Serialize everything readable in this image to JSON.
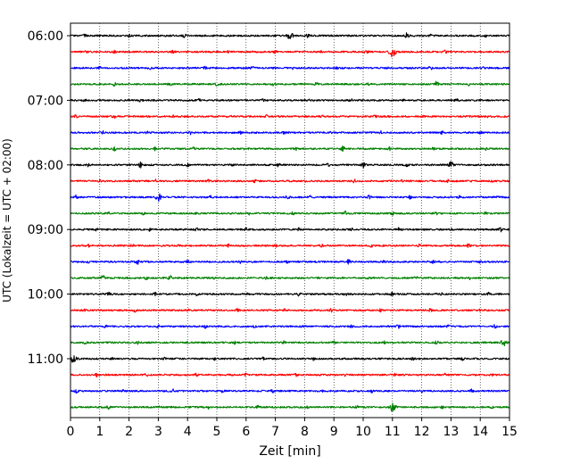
{
  "chart_data": {
    "type": "line",
    "title": "",
    "xlabel": "Zeit  [min]",
    "ylabel": "UTC (Lokalzeit = UTC + 02:00)",
    "xlim": [
      0,
      15
    ],
    "x_ticks": [
      "0",
      "1",
      "2",
      "3",
      "4",
      "5",
      "6",
      "7",
      "8",
      "9",
      "10",
      "11",
      "12",
      "13",
      "14",
      "15"
    ],
    "y_tick_labels": [
      "06:00",
      "07:00",
      "08:00",
      "09:00",
      "10:00",
      "11:00"
    ],
    "row_interval_minutes": 15,
    "row_start": "06:00",
    "row_end": "11:45",
    "grid": "vertical dotted at each minute",
    "colors": [
      "#000000",
      "#ff0000",
      "#0000ff",
      "#008000"
    ],
    "series": [
      {
        "start": "06:00",
        "color": "#000000",
        "events": [
          [
            7.5,
            1.0
          ],
          [
            11.5,
            0.7
          ],
          [
            0.5,
            0.35
          ],
          [
            2.0,
            0.3
          ],
          [
            3.9,
            0.35
          ],
          [
            5.5,
            0.3
          ],
          [
            8.1,
            0.45
          ],
          [
            12.3,
            0.3
          ],
          [
            14.2,
            0.25
          ]
        ]
      },
      {
        "start": "06:15",
        "color": "#ff0000",
        "events": [
          [
            11.0,
            1.2
          ],
          [
            0.5,
            0.35
          ],
          [
            1.5,
            0.3
          ],
          [
            3.5,
            0.35
          ],
          [
            5.4,
            0.3
          ],
          [
            7.0,
            0.35
          ],
          [
            8.6,
            0.3
          ],
          [
            10.1,
            0.45
          ],
          [
            12.8,
            0.35
          ]
        ]
      },
      {
        "start": "06:30",
        "color": "#0000ff",
        "events": [
          [
            1.0,
            0.3
          ],
          [
            2.7,
            0.35
          ],
          [
            4.6,
            0.3
          ],
          [
            6.2,
            0.35
          ],
          [
            7.6,
            0.3
          ],
          [
            9.1,
            0.35
          ],
          [
            10.8,
            0.3
          ],
          [
            12.3,
            0.35
          ],
          [
            14.1,
            0.3
          ]
        ]
      },
      {
        "start": "06:45",
        "color": "#008000",
        "events": [
          [
            1.5,
            0.35
          ],
          [
            3.4,
            0.3
          ],
          [
            5.0,
            0.35
          ],
          [
            6.9,
            0.3
          ],
          [
            8.4,
            0.35
          ],
          [
            10.2,
            0.3
          ],
          [
            12.5,
            0.6
          ],
          [
            13.6,
            0.3
          ]
        ]
      },
      {
        "start": "07:00",
        "color": "#000000",
        "events": [
          [
            0.5,
            0.3
          ],
          [
            2.4,
            0.35
          ],
          [
            4.4,
            0.3
          ],
          [
            6.6,
            0.35
          ],
          [
            8.2,
            0.3
          ],
          [
            9.6,
            0.35
          ],
          [
            11.4,
            0.3
          ],
          [
            13.2,
            0.35
          ]
        ]
      },
      {
        "start": "07:15",
        "color": "#ff0000",
        "events": [
          [
            0.2,
            0.5
          ],
          [
            1.5,
            0.4
          ],
          [
            3.5,
            0.35
          ],
          [
            5.5,
            0.3
          ],
          [
            6.7,
            0.35
          ],
          [
            8.6,
            0.3
          ],
          [
            10.4,
            0.35
          ],
          [
            12.1,
            0.3
          ],
          [
            14.3,
            0.35
          ]
        ]
      },
      {
        "start": "07:30",
        "color": "#0000ff",
        "events": [
          [
            1.1,
            0.35
          ],
          [
            2.6,
            0.3
          ],
          [
            4.1,
            0.35
          ],
          [
            5.8,
            0.3
          ],
          [
            7.3,
            0.35
          ],
          [
            8.9,
            0.3
          ],
          [
            10.6,
            0.35
          ],
          [
            12.7,
            0.4
          ],
          [
            14.0,
            0.3
          ]
        ]
      },
      {
        "start": "07:45",
        "color": "#008000",
        "events": [
          [
            1.5,
            0.45
          ],
          [
            2.9,
            0.4
          ],
          [
            4.2,
            0.35
          ],
          [
            6.0,
            0.35
          ],
          [
            7.7,
            0.3
          ],
          [
            9.3,
            0.6
          ],
          [
            10.9,
            0.35
          ],
          [
            12.4,
            0.3
          ],
          [
            14.2,
            0.35
          ]
        ]
      },
      {
        "start": "08:00",
        "color": "#000000",
        "events": [
          [
            2.4,
            0.7
          ],
          [
            0.6,
            0.35
          ],
          [
            4.0,
            0.35
          ],
          [
            5.5,
            0.3
          ],
          [
            7.1,
            0.35
          ],
          [
            8.8,
            0.3
          ],
          [
            10.0,
            0.7
          ],
          [
            11.5,
            0.35
          ],
          [
            13.0,
            0.7
          ]
        ]
      },
      {
        "start": "08:15",
        "color": "#ff0000",
        "events": [
          [
            1.0,
            0.3
          ],
          [
            2.9,
            0.35
          ],
          [
            4.7,
            0.3
          ],
          [
            6.3,
            0.35
          ],
          [
            8.0,
            0.3
          ],
          [
            9.7,
            0.35
          ],
          [
            11.3,
            0.3
          ],
          [
            12.9,
            0.35
          ],
          [
            14.4,
            0.3
          ]
        ]
      },
      {
        "start": "08:30",
        "color": "#0000ff",
        "events": [
          [
            0.2,
            0.45
          ],
          [
            3.0,
            1.0
          ],
          [
            4.8,
            0.35
          ],
          [
            7.4,
            0.65
          ],
          [
            8.2,
            0.35
          ],
          [
            10.2,
            0.4
          ],
          [
            11.6,
            0.35
          ],
          [
            13.3,
            0.35
          ],
          [
            14.6,
            0.3
          ]
        ]
      },
      {
        "start": "08:45",
        "color": "#008000",
        "events": [
          [
            1.3,
            0.35
          ],
          [
            2.5,
            0.3
          ],
          [
            4.3,
            0.35
          ],
          [
            6.1,
            0.3
          ],
          [
            7.6,
            0.35
          ],
          [
            9.4,
            0.45
          ],
          [
            11.0,
            0.35
          ],
          [
            12.5,
            0.3
          ],
          [
            14.2,
            0.35
          ]
        ]
      },
      {
        "start": "09:00",
        "color": "#000000",
        "events": [
          [
            0.9,
            0.35
          ],
          [
            2.7,
            0.3
          ],
          [
            4.3,
            0.35
          ],
          [
            6.0,
            0.3
          ],
          [
            7.8,
            0.35
          ],
          [
            9.6,
            0.3
          ],
          [
            11.2,
            0.35
          ],
          [
            13.0,
            0.3
          ],
          [
            14.7,
            0.5
          ]
        ]
      },
      {
        "start": "09:15",
        "color": "#ff0000",
        "events": [
          [
            0.6,
            0.35
          ],
          [
            2.1,
            0.3
          ],
          [
            3.7,
            0.35
          ],
          [
            5.4,
            0.3
          ],
          [
            7.0,
            0.35
          ],
          [
            8.6,
            0.3
          ],
          [
            10.3,
            0.35
          ],
          [
            11.9,
            0.3
          ],
          [
            13.6,
            0.35
          ]
        ]
      },
      {
        "start": "09:30",
        "color": "#0000ff",
        "events": [
          [
            0.6,
            0.3
          ],
          [
            2.3,
            0.55
          ],
          [
            4.0,
            0.35
          ],
          [
            5.8,
            0.3
          ],
          [
            7.4,
            0.35
          ],
          [
            9.5,
            0.55
          ],
          [
            10.7,
            0.35
          ],
          [
            12.4,
            0.3
          ],
          [
            14.0,
            0.35
          ]
        ]
      },
      {
        "start": "09:45",
        "color": "#008000",
        "events": [
          [
            1.1,
            0.6
          ],
          [
            2.6,
            0.4
          ],
          [
            3.4,
            0.55
          ],
          [
            4.9,
            0.35
          ],
          [
            6.7,
            0.35
          ],
          [
            8.5,
            0.3
          ],
          [
            10.2,
            0.35
          ],
          [
            11.8,
            0.3
          ],
          [
            13.6,
            0.4
          ]
        ]
      },
      {
        "start": "10:00",
        "color": "#000000",
        "events": [
          [
            1.3,
            0.4
          ],
          [
            2.9,
            0.35
          ],
          [
            4.3,
            0.35
          ],
          [
            6.0,
            0.3
          ],
          [
            7.8,
            0.35
          ],
          [
            9.4,
            0.3
          ],
          [
            11.0,
            0.35
          ],
          [
            12.7,
            0.3
          ],
          [
            14.3,
            0.35
          ]
        ]
      },
      {
        "start": "10:15",
        "color": "#ff0000",
        "events": [
          [
            0.5,
            0.3
          ],
          [
            2.2,
            0.35
          ],
          [
            4.0,
            0.3
          ],
          [
            5.7,
            0.35
          ],
          [
            7.3,
            0.3
          ],
          [
            8.9,
            0.35
          ],
          [
            10.6,
            0.3
          ],
          [
            12.3,
            0.35
          ],
          [
            14.0,
            0.3
          ]
        ]
      },
      {
        "start": "10:30",
        "color": "#0000ff",
        "events": [
          [
            1.2,
            0.35
          ],
          [
            3.0,
            0.3
          ],
          [
            4.6,
            0.35
          ],
          [
            6.3,
            0.3
          ],
          [
            7.9,
            0.35
          ],
          [
            9.6,
            0.3
          ],
          [
            11.2,
            0.45
          ],
          [
            12.9,
            0.3
          ],
          [
            14.5,
            0.35
          ]
        ]
      },
      {
        "start": "10:45",
        "color": "#008000",
        "events": [
          [
            0.5,
            0.35
          ],
          [
            2.3,
            0.3
          ],
          [
            4.0,
            0.35
          ],
          [
            5.6,
            0.3
          ],
          [
            7.3,
            0.35
          ],
          [
            9.0,
            0.3
          ],
          [
            10.7,
            0.35
          ],
          [
            12.5,
            0.4
          ],
          [
            14.8,
            0.9
          ]
        ]
      },
      {
        "start": "11:00",
        "color": "#000000",
        "events": [
          [
            0.1,
            1.0
          ],
          [
            1.4,
            0.35
          ],
          [
            3.2,
            0.3
          ],
          [
            4.9,
            0.35
          ],
          [
            6.6,
            0.3
          ],
          [
            8.3,
            0.35
          ],
          [
            10.0,
            0.3
          ],
          [
            11.7,
            0.35
          ],
          [
            13.4,
            0.3
          ]
        ]
      },
      {
        "start": "11:15",
        "color": "#ff0000",
        "events": [
          [
            0.9,
            0.35
          ],
          [
            2.6,
            0.3
          ],
          [
            4.3,
            0.35
          ],
          [
            6.0,
            0.3
          ],
          [
            7.7,
            0.35
          ],
          [
            9.4,
            0.3
          ],
          [
            11.1,
            0.35
          ],
          [
            12.8,
            0.3
          ],
          [
            14.4,
            0.35
          ]
        ]
      },
      {
        "start": "11:30",
        "color": "#0000ff",
        "events": [
          [
            0.2,
            0.4
          ],
          [
            1.8,
            0.35
          ],
          [
            3.5,
            0.35
          ],
          [
            5.2,
            0.3
          ],
          [
            6.9,
            0.35
          ],
          [
            8.6,
            0.3
          ],
          [
            10.3,
            0.35
          ],
          [
            12.0,
            0.3
          ],
          [
            13.7,
            0.35
          ]
        ]
      },
      {
        "start": "11:45",
        "color": "#008000",
        "events": [
          [
            1.3,
            0.4
          ],
          [
            3.0,
            0.35
          ],
          [
            4.7,
            0.35
          ],
          [
            6.4,
            0.3
          ],
          [
            8.1,
            0.35
          ],
          [
            9.8,
            0.3
          ],
          [
            11.0,
            1.1
          ],
          [
            12.7,
            0.35
          ],
          [
            14.4,
            0.3
          ]
        ]
      }
    ]
  }
}
